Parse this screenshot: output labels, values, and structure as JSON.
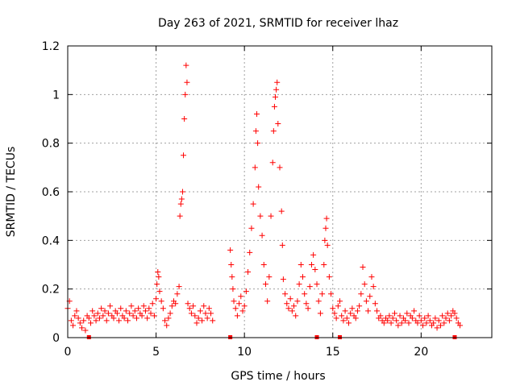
{
  "chart_data": {
    "type": "scatter",
    "title": "Day 263 of 2021, SRMTID for receiver lhaz",
    "xlabel": "GPS time / hours",
    "ylabel": "SRMTID / TECUs",
    "xlim": [
      0,
      24
    ],
    "ylim": [
      0,
      1.2
    ],
    "x_ticks": [
      0,
      5,
      10,
      15,
      20
    ],
    "x_tick_labels": [
      "0",
      "5",
      "10",
      "15",
      "20"
    ],
    "y_ticks": [
      0,
      0.2,
      0.4,
      0.6,
      0.8,
      1.0,
      1.2
    ],
    "y_tick_labels": [
      "0",
      "0.2",
      "0.4",
      "0.6",
      "0.8",
      "1",
      "1.2"
    ],
    "grid": true,
    "marker": "plus",
    "color": "#ff0000",
    "series": [
      {
        "name": "SRMTID",
        "points": [
          [
            0.0,
            0.12
          ],
          [
            0.1,
            0.15
          ],
          [
            0.2,
            0.07
          ],
          [
            0.3,
            0.05
          ],
          [
            0.4,
            0.09
          ],
          [
            0.5,
            0.11
          ],
          [
            0.6,
            0.08
          ],
          [
            0.7,
            0.06
          ],
          [
            0.8,
            0.04
          ],
          [
            0.9,
            0.07
          ],
          [
            1.0,
            0.03
          ],
          [
            1.1,
            0.09
          ],
          [
            1.2,
            0.08
          ],
          [
            1.3,
            0.06
          ],
          [
            1.4,
            0.11
          ],
          [
            1.5,
            0.09
          ],
          [
            1.6,
            0.07
          ],
          [
            1.7,
            0.1
          ],
          [
            1.8,
            0.08
          ],
          [
            1.9,
            0.12
          ],
          [
            2.0,
            0.09
          ],
          [
            2.1,
            0.11
          ],
          [
            2.2,
            0.07
          ],
          [
            2.3,
            0.1
          ],
          [
            2.4,
            0.13
          ],
          [
            2.5,
            0.09
          ],
          [
            2.6,
            0.08
          ],
          [
            2.7,
            0.11
          ],
          [
            2.8,
            0.1
          ],
          [
            2.9,
            0.07
          ],
          [
            3.0,
            0.12
          ],
          [
            3.1,
            0.09
          ],
          [
            3.2,
            0.08
          ],
          [
            3.3,
            0.11
          ],
          [
            3.4,
            0.07
          ],
          [
            3.5,
            0.1
          ],
          [
            3.6,
            0.13
          ],
          [
            3.7,
            0.09
          ],
          [
            3.8,
            0.11
          ],
          [
            3.9,
            0.08
          ],
          [
            4.0,
            0.12
          ],
          [
            4.1,
            0.1
          ],
          [
            4.2,
            0.09
          ],
          [
            4.3,
            0.13
          ],
          [
            4.4,
            0.11
          ],
          [
            4.5,
            0.08
          ],
          [
            4.6,
            0.12
          ],
          [
            4.7,
            0.1
          ],
          [
            4.8,
            0.14
          ],
          [
            4.9,
            0.09
          ],
          [
            5.0,
            0.16
          ],
          [
            5.05,
            0.22
          ],
          [
            5.1,
            0.27
          ],
          [
            5.15,
            0.25
          ],
          [
            5.2,
            0.19
          ],
          [
            5.3,
            0.15
          ],
          [
            5.4,
            0.12
          ],
          [
            5.5,
            0.07
          ],
          [
            5.6,
            0.05
          ],
          [
            5.7,
            0.08
          ],
          [
            5.8,
            0.1
          ],
          [
            5.9,
            0.13
          ],
          [
            6.0,
            0.15
          ],
          [
            6.1,
            0.14
          ],
          [
            6.2,
            0.18
          ],
          [
            6.3,
            0.21
          ],
          [
            6.35,
            0.5
          ],
          [
            6.4,
            0.55
          ],
          [
            6.45,
            0.57
          ],
          [
            6.5,
            0.6
          ],
          [
            6.55,
            0.75
          ],
          [
            6.6,
            0.9
          ],
          [
            6.65,
            1.0
          ],
          [
            6.7,
            1.12
          ],
          [
            6.75,
            1.05
          ],
          [
            6.8,
            0.14
          ],
          [
            6.9,
            0.12
          ],
          [
            7.0,
            0.1
          ],
          [
            7.1,
            0.13
          ],
          [
            7.2,
            0.09
          ],
          [
            7.3,
            0.06
          ],
          [
            7.4,
            0.08
          ],
          [
            7.5,
            0.11
          ],
          [
            7.6,
            0.07
          ],
          [
            7.7,
            0.13
          ],
          [
            7.8,
            0.1
          ],
          [
            7.9,
            0.08
          ],
          [
            8.0,
            0.12
          ],
          [
            8.1,
            0.1
          ],
          [
            8.2,
            0.07
          ],
          [
            9.2,
            0.36
          ],
          [
            9.25,
            0.3
          ],
          [
            9.3,
            0.25
          ],
          [
            9.35,
            0.2
          ],
          [
            9.4,
            0.15
          ],
          [
            9.5,
            0.12
          ],
          [
            9.6,
            0.09
          ],
          [
            9.7,
            0.14
          ],
          [
            9.8,
            0.17
          ],
          [
            9.9,
            0.11
          ],
          [
            10.0,
            0.13
          ],
          [
            10.1,
            0.19
          ],
          [
            10.2,
            0.27
          ],
          [
            10.3,
            0.35
          ],
          [
            10.4,
            0.45
          ],
          [
            10.5,
            0.55
          ],
          [
            10.6,
            0.7
          ],
          [
            10.65,
            0.85
          ],
          [
            10.7,
            0.92
          ],
          [
            10.75,
            0.8
          ],
          [
            10.8,
            0.62
          ],
          [
            10.9,
            0.5
          ],
          [
            11.0,
            0.42
          ],
          [
            11.1,
            0.3
          ],
          [
            11.2,
            0.22
          ],
          [
            11.3,
            0.15
          ],
          [
            11.4,
            0.25
          ],
          [
            11.5,
            0.5
          ],
          [
            11.6,
            0.72
          ],
          [
            11.65,
            0.85
          ],
          [
            11.7,
            0.95
          ],
          [
            11.75,
            0.99
          ],
          [
            11.8,
            1.02
          ],
          [
            11.85,
            1.05
          ],
          [
            11.9,
            0.88
          ],
          [
            12.0,
            0.7
          ],
          [
            12.1,
            0.52
          ],
          [
            12.15,
            0.38
          ],
          [
            12.2,
            0.24
          ],
          [
            12.3,
            0.18
          ],
          [
            12.4,
            0.14
          ],
          [
            12.5,
            0.12
          ],
          [
            12.6,
            0.16
          ],
          [
            12.7,
            0.11
          ],
          [
            12.8,
            0.13
          ],
          [
            12.9,
            0.09
          ],
          [
            13.0,
            0.15
          ],
          [
            13.1,
            0.22
          ],
          [
            13.2,
            0.3
          ],
          [
            13.3,
            0.25
          ],
          [
            13.4,
            0.18
          ],
          [
            13.5,
            0.14
          ],
          [
            13.6,
            0.12
          ],
          [
            13.7,
            0.21
          ],
          [
            13.8,
            0.3
          ],
          [
            13.9,
            0.34
          ],
          [
            14.0,
            0.28
          ],
          [
            14.1,
            0.22
          ],
          [
            14.2,
            0.15
          ],
          [
            14.3,
            0.1
          ],
          [
            14.4,
            0.18
          ],
          [
            14.5,
            0.3
          ],
          [
            14.55,
            0.4
          ],
          [
            14.6,
            0.45
          ],
          [
            14.65,
            0.49
          ],
          [
            14.7,
            0.38
          ],
          [
            14.8,
            0.25
          ],
          [
            14.9,
            0.18
          ],
          [
            15.0,
            0.12
          ],
          [
            15.1,
            0.1
          ],
          [
            15.2,
            0.08
          ],
          [
            15.3,
            0.13
          ],
          [
            15.4,
            0.15
          ],
          [
            15.5,
            0.09
          ],
          [
            15.6,
            0.07
          ],
          [
            15.7,
            0.11
          ],
          [
            15.8,
            0.08
          ],
          [
            15.9,
            0.06
          ],
          [
            16.0,
            0.1
          ],
          [
            16.1,
            0.12
          ],
          [
            16.2,
            0.09
          ],
          [
            16.3,
            0.08
          ],
          [
            16.4,
            0.11
          ],
          [
            16.5,
            0.13
          ],
          [
            16.6,
            0.18
          ],
          [
            16.7,
            0.29
          ],
          [
            16.8,
            0.22
          ],
          [
            16.9,
            0.15
          ],
          [
            17.0,
            0.11
          ],
          [
            17.1,
            0.17
          ],
          [
            17.2,
            0.25
          ],
          [
            17.3,
            0.21
          ],
          [
            17.4,
            0.14
          ],
          [
            17.5,
            0.11
          ],
          [
            17.6,
            0.08
          ],
          [
            17.7,
            0.09
          ],
          [
            17.8,
            0.07
          ],
          [
            17.9,
            0.06
          ],
          [
            18.0,
            0.08
          ],
          [
            18.1,
            0.07
          ],
          [
            18.2,
            0.09
          ],
          [
            18.3,
            0.06
          ],
          [
            18.4,
            0.08
          ],
          [
            18.5,
            0.1
          ],
          [
            18.6,
            0.07
          ],
          [
            18.7,
            0.05
          ],
          [
            18.8,
            0.09
          ],
          [
            18.9,
            0.06
          ],
          [
            19.0,
            0.08
          ],
          [
            19.1,
            0.07
          ],
          [
            19.2,
            0.1
          ],
          [
            19.3,
            0.06
          ],
          [
            19.4,
            0.09
          ],
          [
            19.5,
            0.08
          ],
          [
            19.6,
            0.11
          ],
          [
            19.7,
            0.07
          ],
          [
            19.8,
            0.06
          ],
          [
            19.9,
            0.09
          ],
          [
            20.0,
            0.07
          ],
          [
            20.1,
            0.05
          ],
          [
            20.2,
            0.08
          ],
          [
            20.3,
            0.06
          ],
          [
            20.4,
            0.09
          ],
          [
            20.5,
            0.07
          ],
          [
            20.6,
            0.05
          ],
          [
            20.7,
            0.06
          ],
          [
            20.8,
            0.08
          ],
          [
            20.9,
            0.04
          ],
          [
            21.0,
            0.07
          ],
          [
            21.1,
            0.05
          ],
          [
            21.2,
            0.09
          ],
          [
            21.3,
            0.06
          ],
          [
            21.4,
            0.08
          ],
          [
            21.5,
            0.1
          ],
          [
            21.6,
            0.07
          ],
          [
            21.7,
            0.09
          ],
          [
            21.8,
            0.11
          ],
          [
            21.9,
            0.1
          ],
          [
            22.0,
            0.08
          ],
          [
            22.1,
            0.06
          ],
          [
            22.2,
            0.05
          ]
        ]
      }
    ],
    "baseline_markers": [
      1.2,
      9.2,
      14.1,
      15.4,
      21.9
    ]
  }
}
